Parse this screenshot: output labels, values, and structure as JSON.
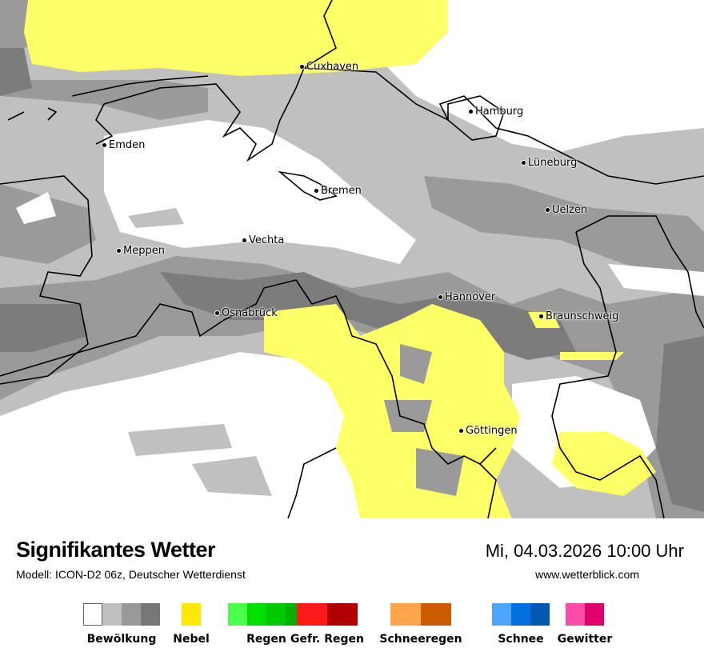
{
  "header": {
    "title": "Signifikantes Wetter",
    "model": "Modell: ICON-D2 06z, Deutscher Wetterdienst",
    "datetime": "Mi, 04.03.2026 10:00 Uhr",
    "website": "www.wetterblick.com"
  },
  "cities": [
    "Cuxhaven",
    "Hamburg",
    "Emden",
    "Lüneburg",
    "Bremen",
    "Uelzen",
    "Vechta",
    "Meppen",
    "Hannover",
    "Braunschweig",
    "Osnabrück",
    "Göttingen"
  ],
  "legend": [
    {
      "label": "Bewölkung",
      "colors": [
        "#ffffff",
        "#c0c0c0",
        "#999999",
        "#777777"
      ]
    },
    {
      "label": "Nebel",
      "colors": [
        "#ffe800"
      ]
    },
    {
      "label": "Regen",
      "colors": [
        "#4cff4c",
        "#00e000",
        "#00c800",
        "#00b000"
      ]
    },
    {
      "label": "Gefr. Regen",
      "colors": [
        "#ff1a1a",
        "#b00000"
      ]
    },
    {
      "label": "Schneeregen",
      "colors": [
        "#ffa64c",
        "#cc5c00"
      ]
    },
    {
      "label": "Schnee",
      "colors": [
        "#4ca6ff",
        "#0070e0",
        "#0058b0"
      ]
    },
    {
      "label": "Gewitter",
      "colors": [
        "#ff4ca6",
        "#e0006c"
      ]
    }
  ],
  "map_colors": {
    "cloud_light": "#c0c0c0",
    "cloud_mid": "#9a9a9a",
    "cloud_dark": "#7c7c7c",
    "fog": "#ffff66",
    "clear": "#ffffff"
  }
}
